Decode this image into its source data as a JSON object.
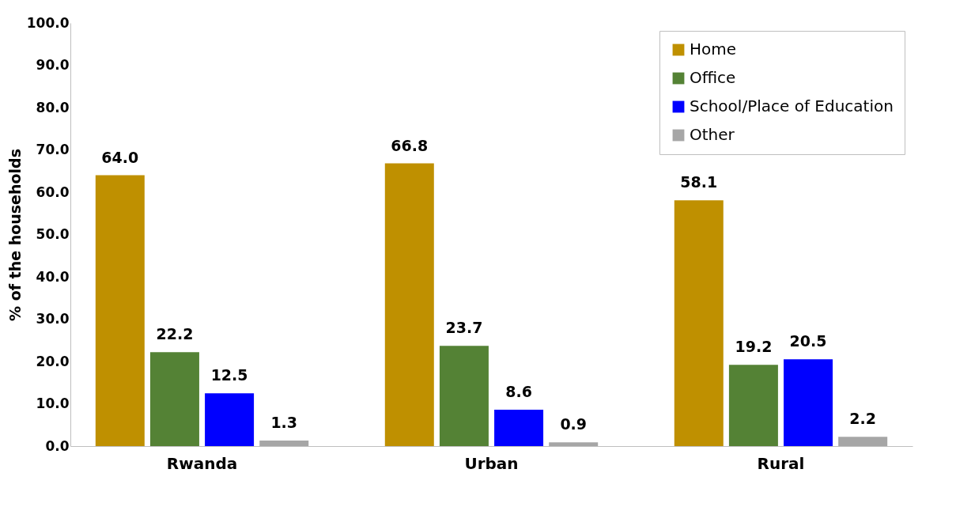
{
  "chart_data": {
    "type": "bar",
    "ylabel": "% of the households",
    "categories": [
      "Rwanda",
      "Urban",
      "Rural"
    ],
    "series": [
      {
        "name": "Home",
        "color": "#bf9000",
        "values": [
          64.0,
          66.8,
          58.1
        ],
        "value_labels": [
          "64.0",
          "66.8",
          "58.1"
        ]
      },
      {
        "name": "Office",
        "color": "#548235",
        "values": [
          22.2,
          23.7,
          19.2
        ],
        "value_labels": [
          "22.2",
          "23.7",
          "19.2"
        ]
      },
      {
        "name": "School/Place of Education",
        "color": "#0000ff",
        "values": [
          12.5,
          8.6,
          20.5
        ],
        "value_labels": [
          "12.5",
          "8.6",
          "20.5"
        ]
      },
      {
        "name": "Other",
        "color": "#a6a6a6",
        "values": [
          1.3,
          0.9,
          2.2
        ],
        "value_labels": [
          "1.3",
          "0.9",
          "2.2"
        ]
      }
    ],
    "ylim": [
      0,
      100
    ],
    "yticks": [
      {
        "value": 0,
        "label": "0.0"
      },
      {
        "value": 10,
        "label": "10.0"
      },
      {
        "value": 20,
        "label": "20.0"
      },
      {
        "value": 30,
        "label": "30.0"
      },
      {
        "value": 40,
        "label": "40.0"
      },
      {
        "value": 50,
        "label": "50.0"
      },
      {
        "value": 60,
        "label": "60.0"
      },
      {
        "value": 70,
        "label": "70.0"
      },
      {
        "value": 80,
        "label": "80.0"
      },
      {
        "value": 90,
        "label": "90.0"
      },
      {
        "value": 100,
        "label": "100.0"
      }
    ],
    "grid": false,
    "legend": "top right"
  }
}
